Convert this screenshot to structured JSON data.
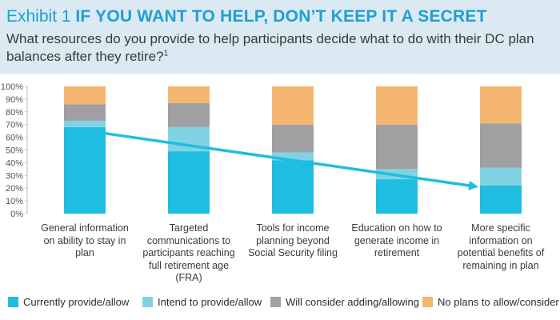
{
  "header": {
    "exhibit_label": "Exhibit 1",
    "title": "IF YOU WANT TO HELP, DON’T KEEP IT A SECRET",
    "question": "What resources do you provide to help participants decide what to do with their DC plan balances after they retire?",
    "footnote_ref": "1"
  },
  "chart_data": {
    "type": "bar",
    "stacked": true,
    "ylim": [
      0,
      100
    ],
    "yticks": [
      "0%",
      "10%",
      "20%",
      "30%",
      "40%",
      "50%",
      "60%",
      "70%",
      "80%",
      "90%",
      "100%"
    ],
    "grid": false,
    "legend_position": "bottom",
    "categories": [
      "General information on ability to stay in plan",
      "Targeted communications to participants reaching full retirement age (FRA)",
      "Tools for income planning beyond Social Security filing",
      "Education on how to generate income in retirement",
      "More specific information on potential benefits of remaining in plan"
    ],
    "category_lines": [
      [
        "General information",
        "on ability to stay in",
        "plan"
      ],
      [
        "Targeted",
        "communications to",
        "participants reaching",
        "full retirement age",
        "(FRA)"
      ],
      [
        "Tools for income",
        "planning beyond",
        "Social Security filing"
      ],
      [
        "Education on how to",
        "generate income in",
        "retirement"
      ],
      [
        "More specific",
        "information on",
        "potential benefits of",
        "remaining in plan"
      ]
    ],
    "series": [
      {
        "name": "Currently provide/allow",
        "color": "#1fbde0",
        "values": [
          68,
          49,
          42,
          27,
          22
        ]
      },
      {
        "name": "Intend to provide/allow",
        "color": "#7fd3e3",
        "values": [
          5,
          19,
          6,
          8,
          14
        ]
      },
      {
        "name": "Will consider adding/allowing",
        "color": "#a0a0a2",
        "values": [
          13,
          19,
          22,
          35,
          35
        ]
      },
      {
        "name": "No plans to allow/consider",
        "color": "#f5b671",
        "values": [
          14,
          13,
          30,
          30,
          29
        ]
      }
    ],
    "trend_arrow": {
      "color": "#1fbde0",
      "from_category": 0,
      "from_value": 63,
      "to_category": 4,
      "to_value": 21
    }
  }
}
